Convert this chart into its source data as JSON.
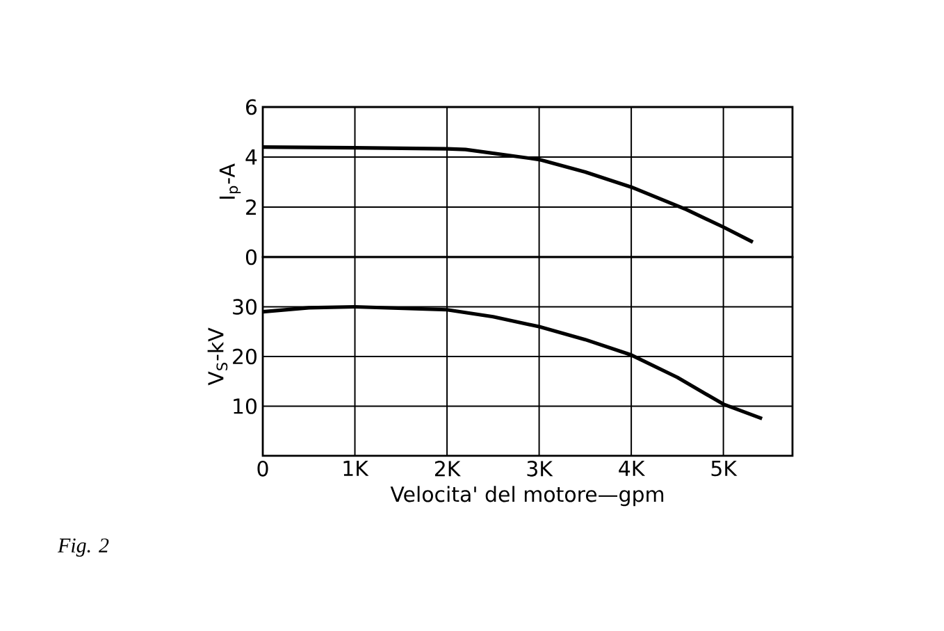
{
  "chart_data": [
    {
      "type": "line",
      "ylabel": "I$_{p}$-A",
      "xlim": [
        0,
        5750
      ],
      "ylim": [
        0,
        6
      ],
      "xticks": [
        {
          "value": 0,
          "label": null
        },
        {
          "value": 1000,
          "label": null
        },
        {
          "value": 2000,
          "label": null
        },
        {
          "value": 3000,
          "label": null
        },
        {
          "value": 4000,
          "label": null
        },
        {
          "value": 5000,
          "label": null
        }
      ],
      "yticks": [
        0,
        2,
        4,
        6
      ],
      "tick_labels": "y",
      "grid": true,
      "series": [
        {
          "color": "#000000",
          "x": [
            0,
            1000,
            2000,
            2200,
            3000,
            3500,
            4000,
            4600,
            5000,
            5320
          ],
          "values": [
            4.4,
            4.37,
            4.33,
            4.3,
            3.9,
            3.4,
            2.8,
            1.9,
            1.2,
            0.6
          ]
        }
      ]
    },
    {
      "type": "line",
      "ylabel": "V$_{S}$-kV",
      "xlabel": "Velocita' del motore—gpm",
      "xlim": [
        0,
        5750
      ],
      "ylim": [
        0,
        40
      ],
      "xticks": [
        {
          "value": 0,
          "label": "0"
        },
        {
          "value": 1000,
          "label": "1K"
        },
        {
          "value": 2000,
          "label": "2K"
        },
        {
          "value": 3000,
          "label": "3K"
        },
        {
          "value": 4000,
          "label": "4K"
        },
        {
          "value": 5000,
          "label": "5K"
        }
      ],
      "yticks": [
        10,
        20,
        30
      ],
      "grid": true,
      "annotations": [
        "*Fig. 2*"
      ],
      "series": [
        {
          "color": "#000000",
          "x": [
            0,
            500,
            1000,
            2000,
            2500,
            3000,
            3500,
            4000,
            4500,
            5000,
            5420
          ],
          "values": [
            29,
            29.8,
            30,
            29.4,
            28,
            26,
            23.4,
            20.3,
            15.8,
            10.4,
            7.5
          ]
        }
      ]
    }
  ]
}
